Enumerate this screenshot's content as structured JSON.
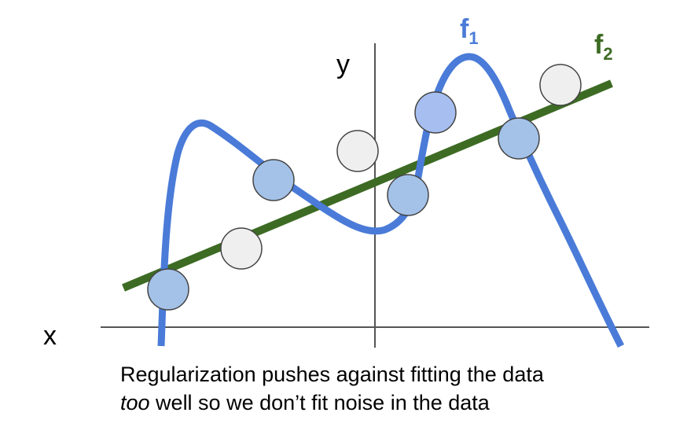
{
  "axes": {
    "x_label": "x",
    "y_label": "y"
  },
  "curves": {
    "f1": {
      "label": "f",
      "subscript": "1",
      "color": "#4a7bd8"
    },
    "f2": {
      "label": "f",
      "subscript": "2",
      "color": "#3d6b24"
    }
  },
  "caption": {
    "line1": "Regularization pushes against fitting the data",
    "line2_emph": "too",
    "line2_rest": " well so we don’t fit noise in the data"
  },
  "colors": {
    "axis": "#555555",
    "point_fit": "#a4c2e8",
    "point_fit_highlight": "#a7bff0",
    "point_noise": "#efefef",
    "point_stroke": "#444444"
  },
  "points": [
    {
      "kind": "fit"
    },
    {
      "kind": "noise"
    },
    {
      "kind": "fit"
    },
    {
      "kind": "noise"
    },
    {
      "kind": "fit"
    },
    {
      "kind": "fit-highlight"
    },
    {
      "kind": "fit"
    },
    {
      "kind": "noise"
    }
  ]
}
